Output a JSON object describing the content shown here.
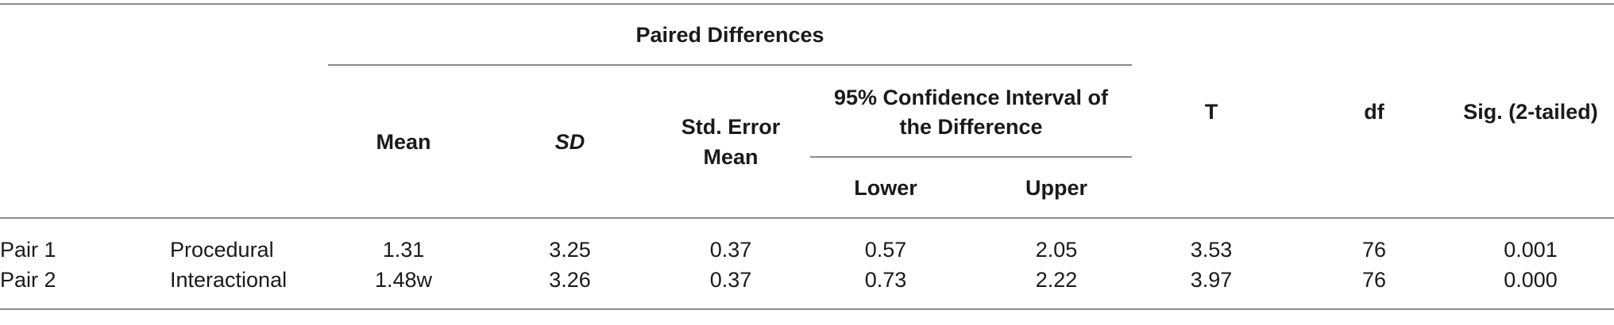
{
  "header": {
    "group_label": "Paired Differences",
    "mean": "Mean",
    "sd": "SD",
    "std_error_mean": [
      "Std. Error",
      "Mean"
    ],
    "ci_label": [
      "95% Confidence Interval of",
      "the Difference"
    ],
    "lower": "Lower",
    "upper": "Upper",
    "t": "T",
    "df": "df",
    "sig": "Sig. (2-tailed)"
  },
  "rows": [
    {
      "pair": "Pair 1",
      "type": "Procedural",
      "mean": "1.31",
      "sd": "3.25",
      "sem": "0.37",
      "lower": "0.57",
      "upper": "2.05",
      "t": "3.53",
      "df": "76",
      "sig": "0.001"
    },
    {
      "pair": "Pair 2",
      "type": "Interactional",
      "mean": "1.48w",
      "sd": "3.26",
      "sem": "0.37",
      "lower": "0.73",
      "upper": "2.22",
      "t": "3.97",
      "df": "76",
      "sig": "0.000"
    }
  ]
}
